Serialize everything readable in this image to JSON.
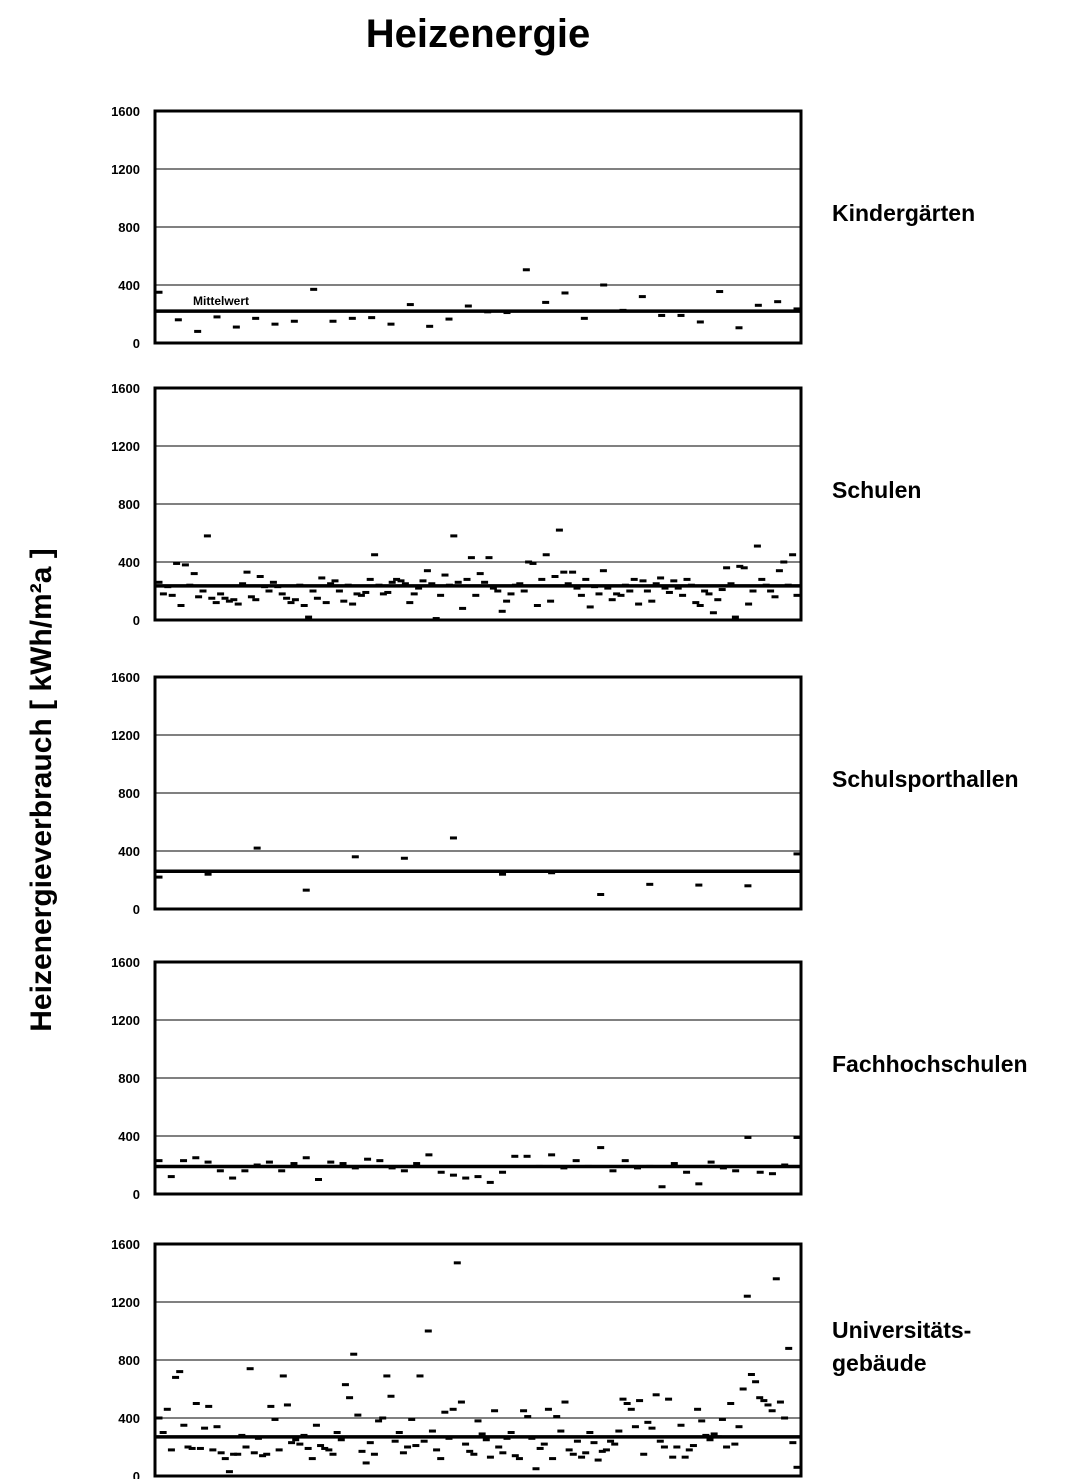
{
  "title": "Heizenergie",
  "ylabel": "Heizenergieverbrauch  [ kWh/m²a ]",
  "mean_label": "Mittelwert",
  "chart_data": [
    {
      "type": "scatter",
      "name": "Kindergärten",
      "label_lines": [
        "Kindergärten"
      ],
      "ylim": [
        0,
        1600
      ],
      "yticks": [
        0,
        400,
        800,
        1200,
        1600
      ],
      "grid": true,
      "mean": 220,
      "values": [
        350,
        160,
        80,
        180,
        110,
        170,
        130,
        150,
        370,
        150,
        170,
        175,
        130,
        265,
        115,
        165,
        255,
        215,
        210,
        505,
        280,
        345,
        170,
        400,
        225,
        320,
        190,
        190,
        145,
        355,
        105,
        260,
        285,
        235
      ]
    },
    {
      "type": "scatter",
      "name": "Schulen",
      "label_lines": [
        "Schulen"
      ],
      "ylim": [
        0,
        1600
      ],
      "yticks": [
        0,
        400,
        800,
        1200,
        1600
      ],
      "grid": true,
      "mean": 235,
      "values": [
        260,
        180,
        230,
        170,
        390,
        100,
        380,
        240,
        320,
        160,
        200,
        580,
        150,
        120,
        180,
        150,
        130,
        140,
        110,
        250,
        330,
        160,
        140,
        300,
        230,
        200,
        260,
        230,
        180,
        150,
        120,
        140,
        240,
        100,
        20,
        200,
        150,
        290,
        120,
        250,
        270,
        200,
        130,
        240,
        110,
        180,
        170,
        190,
        280,
        450,
        240,
        180,
        190,
        260,
        280,
        270,
        250,
        120,
        180,
        220,
        270,
        340,
        250,
        10,
        170,
        310,
        240,
        580,
        260,
        80,
        280,
        430,
        170,
        320,
        260,
        430,
        220,
        200,
        60,
        130,
        180,
        240,
        250,
        200,
        400,
        390,
        100,
        280,
        450,
        130,
        300,
        620,
        330,
        250,
        330,
        220,
        170,
        280,
        90,
        230,
        180,
        340,
        220,
        140,
        180,
        170,
        240,
        200,
        280,
        110,
        270,
        200,
        130,
        250,
        290,
        220,
        190,
        270,
        220,
        170,
        280,
        240,
        120,
        100,
        200,
        180,
        50,
        140,
        210,
        360,
        250,
        20,
        370,
        360,
        110,
        200,
        510,
        280,
        240,
        200,
        160,
        340,
        400,
        240,
        450,
        170
      ]
    },
    {
      "type": "scatter",
      "name": "Schulsporthallen",
      "label_lines": [
        "Schulsporthallen"
      ],
      "ylim": [
        0,
        1600
      ],
      "yticks": [
        0,
        400,
        800,
        1200,
        1600
      ],
      "grid": true,
      "mean": 260,
      "values": [
        220,
        240,
        420,
        130,
        360,
        350,
        490,
        240,
        250,
        100,
        170,
        165,
        160,
        380
      ]
    },
    {
      "type": "scatter",
      "name": "Fachhochschulen",
      "label_lines": [
        "Fachhochschulen"
      ],
      "ylim": [
        0,
        1600
      ],
      "yticks": [
        0,
        400,
        800,
        1200,
        1600
      ],
      "grid": true,
      "mean": 190,
      "values": [
        230,
        120,
        230,
        250,
        220,
        160,
        110,
        160,
        200,
        220,
        160,
        210,
        250,
        100,
        220,
        210,
        180,
        240,
        230,
        180,
        160,
        210,
        270,
        150,
        130,
        110,
        120,
        80,
        150,
        260,
        260,
        190,
        270,
        180,
        230,
        190,
        320,
        160,
        230,
        180,
        190,
        50,
        210,
        150,
        70,
        220,
        180,
        160,
        390,
        150,
        140,
        200,
        390
      ]
    },
    {
      "type": "scatter",
      "name": "Universitätsgebäude",
      "label_lines": [
        "Universitäts-",
        "gebäude"
      ],
      "ylim": [
        0,
        1600
      ],
      "yticks": [
        0,
        400,
        800,
        1200,
        1600
      ],
      "grid": true,
      "mean": 270,
      "values": [
        400,
        300,
        460,
        180,
        680,
        720,
        350,
        200,
        190,
        500,
        190,
        330,
        480,
        180,
        340,
        160,
        120,
        30,
        150,
        150,
        280,
        200,
        740,
        160,
        260,
        140,
        150,
        480,
        390,
        180,
        690,
        490,
        230,
        250,
        220,
        280,
        190,
        120,
        350,
        210,
        190,
        180,
        150,
        300,
        250,
        630,
        540,
        840,
        420,
        170,
        90,
        230,
        150,
        380,
        400,
        690,
        550,
        240,
        300,
        160,
        200,
        390,
        210,
        690,
        240,
        1000,
        310,
        180,
        120,
        440,
        260,
        460,
        1470,
        510,
        220,
        170,
        150,
        380,
        290,
        250,
        130,
        450,
        200,
        160,
        260,
        300,
        140,
        120,
        450,
        410,
        260,
        50,
        190,
        220,
        460,
        120,
        410,
        310,
        510,
        180,
        150,
        240,
        130,
        160,
        300,
        230,
        110,
        170,
        180,
        240,
        220,
        310,
        530,
        500,
        460,
        340,
        520,
        150,
        370,
        330,
        560,
        240,
        200,
        530,
        130,
        200,
        350,
        130,
        180,
        210,
        460,
        380,
        280,
        250,
        290,
        270,
        390,
        200,
        500,
        220,
        340,
        600,
        1240,
        700,
        650,
        540,
        520,
        490,
        450,
        1360,
        510,
        400,
        880,
        230,
        60
      ]
    }
  ]
}
